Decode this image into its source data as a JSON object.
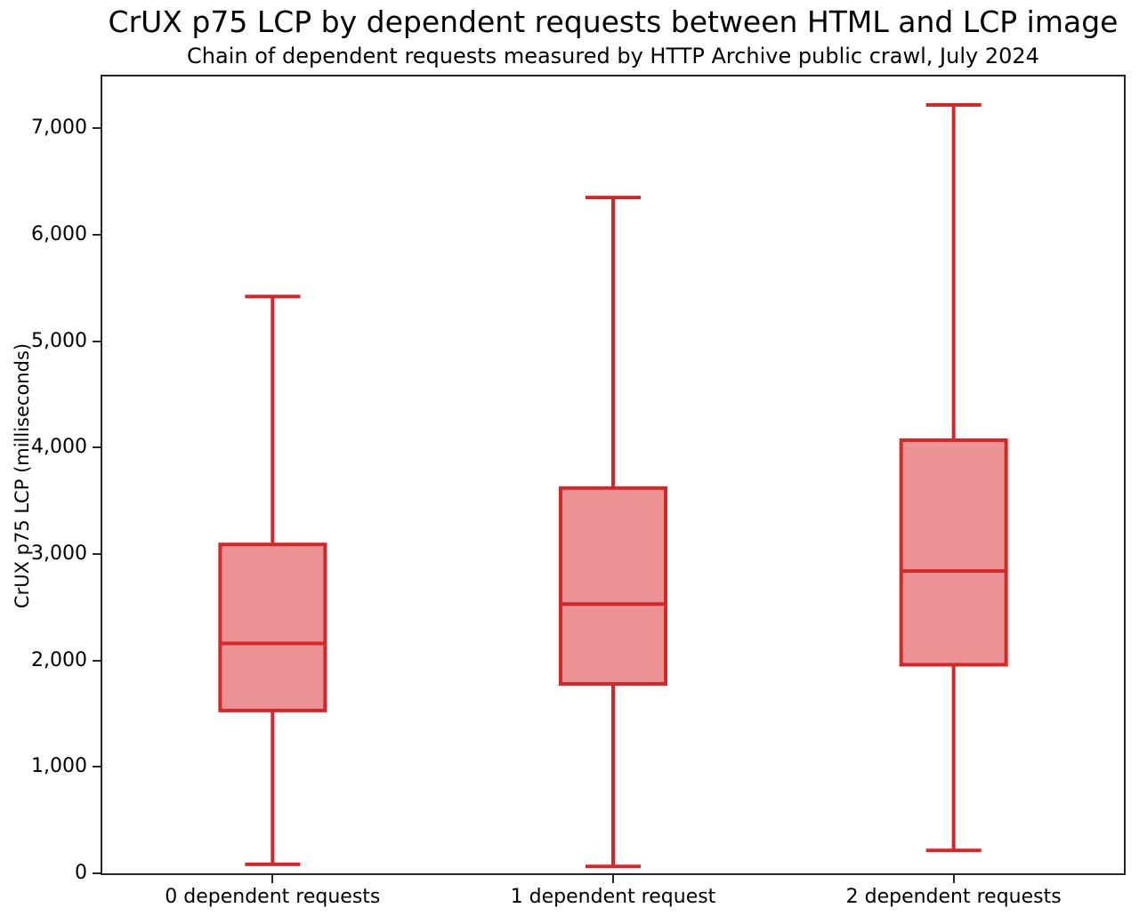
{
  "chart_data": {
    "type": "boxplot",
    "title": "CrUX p75 LCP by dependent requests between HTML and LCP image",
    "subtitle": "Chain of dependent requests measured by HTTP Archive public crawl, July 2024",
    "xlabel": "",
    "ylabel": "CrUX p75 LCP (milliseconds)",
    "categories": [
      "0 dependent requests",
      "1 dependent request",
      "2 dependent requests"
    ],
    "series": [
      {
        "name": "0 dependent requests",
        "whisker_low": 85,
        "q1": 1530,
        "median": 2160,
        "q3": 3090,
        "whisker_high": 5420
      },
      {
        "name": "1 dependent request",
        "whisker_low": 65,
        "q1": 1780,
        "median": 2530,
        "q3": 3620,
        "whisker_high": 6350
      },
      {
        "name": "2 dependent requests",
        "whisker_low": 215,
        "q1": 1960,
        "median": 2840,
        "q3": 4070,
        "whisker_high": 7220
      }
    ],
    "ylim": [
      0,
      7487
    ],
    "yticks": [
      0,
      1000,
      2000,
      3000,
      4000,
      5000,
      6000,
      7000
    ],
    "ytick_labels": [
      "0",
      "1,000",
      "2,000",
      "3,000",
      "4,000",
      "5,000",
      "6,000",
      "7,000"
    ],
    "grid": false,
    "legend": "none",
    "colors": {
      "box_edge": "#d62728",
      "box_fill": "#eb9394",
      "median": "#d62728",
      "whisker": "#d62728",
      "spine": "#262626",
      "text": "#000000"
    }
  }
}
